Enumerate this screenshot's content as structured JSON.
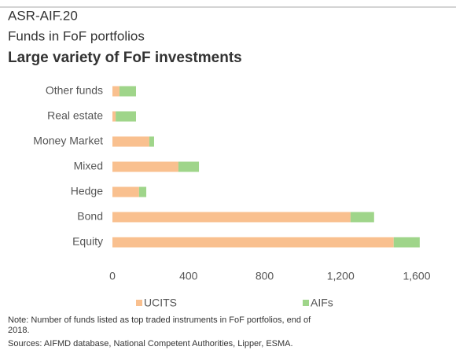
{
  "header": {
    "code": "ASR-AIF.20",
    "subtitle": "Funds in FoF portfolios"
  },
  "chart_data": {
    "type": "stacked_barh",
    "title": "Large variety of FoF investments",
    "categories": [
      "Other funds",
      "Real estate",
      "Money Market",
      "Mixed",
      "Hedge",
      "Bond",
      "Equity"
    ],
    "series": [
      {
        "name": "UCITS",
        "color": "#f9c08f",
        "values": [
          37,
          17,
          194,
          347,
          140,
          1252,
          1479
        ]
      },
      {
        "name": "AIFs",
        "color": "#9fd58a",
        "values": [
          87,
          107,
          25,
          108,
          38,
          124,
          137
        ]
      }
    ],
    "xlim": [
      0,
      1600
    ],
    "xticks": [
      0,
      400,
      800,
      {
        "value": 1200,
        "label": "1,200"
      },
      {
        "value": 1600,
        "label": "1,600"
      }
    ],
    "grid": false,
    "legend": "bottom"
  },
  "footer": {
    "note": [
      "Note: Number of funds listed as top traded instruments in FoF portfolios, end of",
      "2018."
    ],
    "sources": "Sources: AIFMD database, National Competent Authorities, Lipper, ESMA."
  }
}
